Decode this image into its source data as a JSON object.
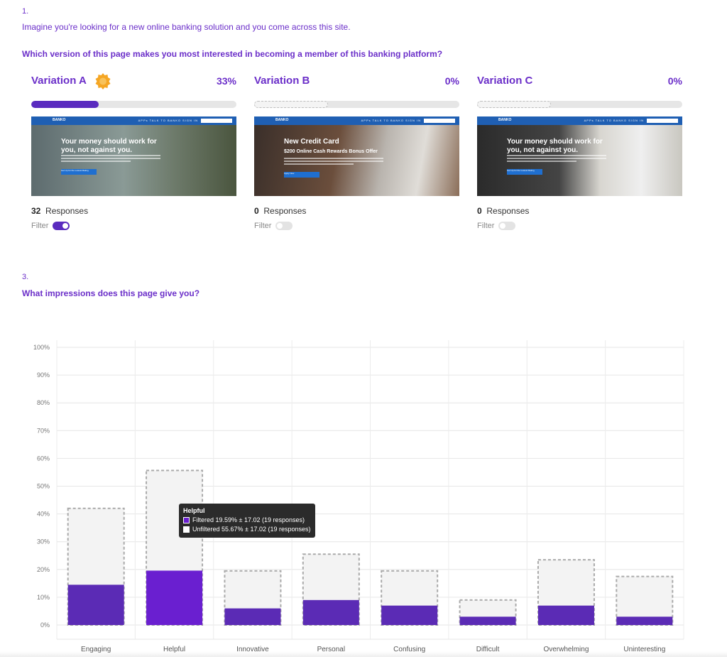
{
  "q1": {
    "number": "1.",
    "intro": "Imagine you're looking for a new online banking solution and you come across this site.",
    "title": "Which version of this page makes you most interested in becoming a member of this banking platform?"
  },
  "variations": [
    {
      "name": "Variation A",
      "percent": "33%",
      "fill": 0.33,
      "winner": true,
      "responses": "32",
      "responses_label": "Responses",
      "filter_label": "Filter",
      "filter_on": true,
      "thumb": {
        "logo": "BANKO",
        "links": "APPs TALK TO BANKO SIGN IN",
        "headline": "Your money should work for you, not against you.",
        "sub": "",
        "button": "Get Up for the Lowest Rating"
      }
    },
    {
      "name": "Variation B",
      "percent": "0%",
      "fill": 0.0,
      "winner": false,
      "responses": "0",
      "responses_label": "Responses",
      "filter_label": "Filter",
      "filter_on": false,
      "thumb": {
        "logo": "BANKO",
        "links": "APPs TALK TO BANKO SIGN IN",
        "headline": "New Credit Card",
        "sub": "$200 Online Cash Rewards Bonus Offer",
        "button": "Apply Now"
      }
    },
    {
      "name": "Variation C",
      "percent": "0%",
      "fill": 0.0,
      "winner": false,
      "responses": "0",
      "responses_label": "Responses",
      "filter_label": "Filter",
      "filter_on": false,
      "thumb": {
        "logo": "BANKO",
        "links": "APPs TALK TO BANKO SIGN IN",
        "headline": "Your money should work for you, not against you.",
        "sub": "",
        "button": "Get Up for the Lowest Rating"
      }
    }
  ],
  "q3": {
    "number": "3.",
    "title": "What impressions does this page give you?"
  },
  "colors": {
    "accent": "#6b2fc9",
    "bar_filtered": "#6a1fd0",
    "bar_filtered_alt": "#5b2bb5",
    "unfiltered": "#f3f3f3"
  },
  "chart_data": {
    "type": "bar",
    "categories": [
      "Engaging",
      "Helpful",
      "Innovative",
      "Personal",
      "Confusing",
      "Difficult",
      "Overwhelming",
      "Uninteresting"
    ],
    "series": [
      {
        "name": "Filtered",
        "values": [
          14.5,
          19.59,
          6.0,
          9.0,
          7.0,
          3.0,
          7.0,
          3.0
        ]
      },
      {
        "name": "Unfiltered",
        "values": [
          42.0,
          55.67,
          19.5,
          25.5,
          19.5,
          9.0,
          23.5,
          17.5
        ]
      }
    ],
    "ylim": [
      0,
      100
    ],
    "yticks": [
      "0%",
      "10%",
      "20%",
      "30%",
      "40%",
      "50%",
      "60%",
      "70%",
      "80%",
      "90%",
      "100%"
    ],
    "grid": true,
    "highlighted_index": 1,
    "tooltip": {
      "title": "Helpful",
      "filtered": "Filtered 19.59% ± 17.02 (19 responses)",
      "unfiltered": "Unfiltered 55.67% ± 17.02 (19 responses)"
    }
  }
}
